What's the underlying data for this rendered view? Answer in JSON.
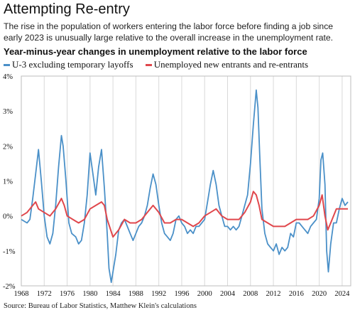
{
  "title": "Attempting Re-entry",
  "subtitle": "The rise in the population of workers entering the labor force before finding a job since early 2023 is unusually large relative to the overall increase in the unemployment rate.",
  "source": "Source: Bureau of Labor Statistics, Matthew Klein's calculations",
  "chart_data": {
    "type": "line",
    "title": "Year-minus-year changes in unemployment relative to the labor force",
    "xlabel": "",
    "ylabel": "",
    "xlim": [
      1968,
      2025.5
    ],
    "ylim": [
      -2,
      4
    ],
    "x_ticks": [
      1968,
      1972,
      1976,
      1980,
      1984,
      1988,
      1992,
      1996,
      2000,
      2004,
      2008,
      2012,
      2016,
      2020,
      2024
    ],
    "y_ticks": [
      -2,
      -1,
      0,
      1,
      2,
      3,
      4
    ],
    "y_tick_labels": [
      "-2%",
      "-1%",
      "0%",
      "1%",
      "2%",
      "3%",
      "4%"
    ],
    "grid": "vertical",
    "legend": "top-left",
    "series": [
      {
        "name": "U-3 excluding temporary layoffs",
        "color": "#4a90c8",
        "x": [
          1968,
          1969,
          1969.5,
          1970,
          1970.5,
          1971,
          1971.5,
          1972,
          1972.5,
          1973,
          1973.5,
          1974,
          1974.5,
          1975,
          1975.3,
          1975.8,
          1976.3,
          1976.8,
          1977.5,
          1978,
          1978.5,
          1979,
          1979.5,
          1980,
          1980.5,
          1981,
          1981.5,
          1982,
          1982.5,
          1983,
          1983.3,
          1983.7,
          1984,
          1984.5,
          1985,
          1985.5,
          1986,
          1986.5,
          1987,
          1987.5,
          1988,
          1988.5,
          1989,
          1989.5,
          1990,
          1990.5,
          1991,
          1991.5,
          1992,
          1992.5,
          1993,
          1993.5,
          1994,
          1994.5,
          1995,
          1995.5,
          1996,
          1996.5,
          1997,
          1997.5,
          1998,
          1998.5,
          1999,
          1999.5,
          2000,
          2000.5,
          2001,
          2001.5,
          2002,
          2002.5,
          2003,
          2003.5,
          2004,
          2004.5,
          2005,
          2005.5,
          2006,
          2006.5,
          2007,
          2007.5,
          2008,
          2008.5,
          2009,
          2009.3,
          2009.6,
          2010,
          2010.5,
          2011,
          2011.5,
          2012,
          2012.5,
          2013,
          2013.5,
          2014,
          2014.5,
          2015,
          2015.5,
          2016,
          2016.5,
          2017,
          2017.5,
          2018,
          2018.5,
          2019,
          2019.5,
          2020,
          2020.3,
          2020.6,
          2021,
          2021.3,
          2021.6,
          2022,
          2022.5,
          2023,
          2023.5,
          2024,
          2024.5,
          2025
        ],
        "values": [
          -0.1,
          -0.2,
          -0.1,
          0.5,
          1.2,
          1.9,
          1.0,
          0.0,
          -0.6,
          -0.8,
          -0.5,
          0.3,
          1.4,
          2.3,
          2.0,
          1.0,
          -0.2,
          -0.5,
          -0.6,
          -0.8,
          -0.7,
          -0.2,
          0.6,
          1.8,
          1.2,
          0.6,
          1.4,
          1.9,
          0.8,
          -0.5,
          -1.5,
          -1.9,
          -1.6,
          -1.1,
          -0.4,
          -0.2,
          -0.1,
          -0.3,
          -0.5,
          -0.7,
          -0.5,
          -0.3,
          -0.2,
          0.0,
          0.3,
          0.8,
          1.2,
          0.9,
          0.3,
          -0.2,
          -0.5,
          -0.6,
          -0.7,
          -0.5,
          -0.1,
          0.0,
          -0.2,
          -0.3,
          -0.5,
          -0.4,
          -0.5,
          -0.3,
          -0.3,
          -0.2,
          -0.1,
          0.4,
          0.9,
          1.3,
          0.9,
          0.3,
          0.0,
          -0.3,
          -0.3,
          -0.4,
          -0.3,
          -0.4,
          -0.3,
          0.0,
          0.3,
          0.6,
          1.5,
          2.6,
          3.6,
          3.1,
          1.8,
          0.2,
          -0.5,
          -0.8,
          -0.9,
          -1.0,
          -0.8,
          -1.1,
          -0.9,
          -1.0,
          -0.9,
          -0.5,
          -0.6,
          -0.2,
          -0.2,
          -0.3,
          -0.4,
          -0.5,
          -0.3,
          -0.2,
          -0.1,
          0.5,
          1.6,
          1.8,
          0.9,
          -1.0,
          -1.6,
          -0.8,
          -0.2,
          -0.2,
          0.2,
          0.5,
          0.3,
          0.4
        ]
      },
      {
        "name": "Unemployed new entrants and re-entrants",
        "color": "#e0474c",
        "x": [
          1968,
          1969,
          1970,
          1970.5,
          1971,
          1972,
          1973,
          1974,
          1975,
          1975.5,
          1976,
          1977,
          1978,
          1979,
          1980,
          1981,
          1982,
          1982.5,
          1983,
          1984,
          1985,
          1986,
          1987,
          1988,
          1989,
          1990,
          1991,
          1992,
          1993,
          1994,
          1995,
          1996,
          1997,
          1998,
          1999,
          2000,
          2001,
          2002,
          2003,
          2004,
          2005,
          2006,
          2007,
          2008,
          2008.5,
          2009,
          2009.5,
          2010,
          2011,
          2012,
          2013,
          2014,
          2015,
          2016,
          2017,
          2018,
          2019,
          2020,
          2020.5,
          2021,
          2021.5,
          2022,
          2023,
          2024,
          2025
        ],
        "values": [
          0.0,
          0.1,
          0.3,
          0.4,
          0.2,
          0.1,
          0.0,
          0.2,
          0.5,
          0.3,
          0.0,
          -0.1,
          -0.2,
          -0.1,
          0.2,
          0.3,
          0.4,
          0.3,
          -0.1,
          -0.6,
          -0.4,
          -0.1,
          -0.2,
          -0.2,
          -0.1,
          0.1,
          0.3,
          0.1,
          -0.2,
          -0.2,
          -0.1,
          -0.1,
          -0.2,
          -0.3,
          -0.2,
          0.0,
          0.1,
          0.2,
          0.0,
          -0.1,
          -0.1,
          -0.1,
          0.1,
          0.4,
          0.7,
          0.6,
          0.3,
          -0.1,
          -0.2,
          -0.3,
          -0.3,
          -0.3,
          -0.2,
          -0.1,
          -0.1,
          -0.1,
          0.0,
          0.3,
          0.6,
          0.0,
          -0.4,
          -0.2,
          0.2,
          0.2,
          0.2
        ]
      }
    ]
  }
}
